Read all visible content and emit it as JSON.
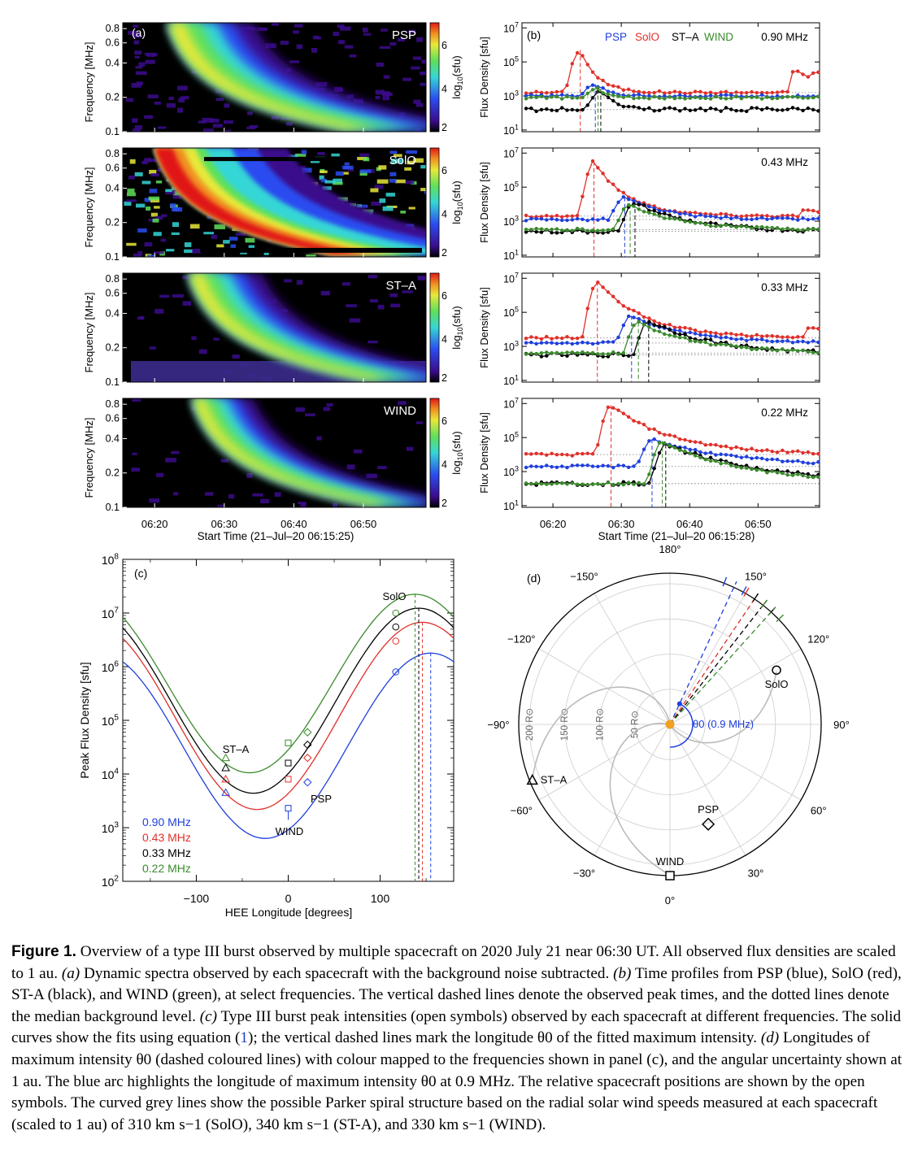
{
  "figure": {
    "panel_a": {
      "label": "(a)",
      "ylabel": "Frequency [MHz]",
      "yticks": [
        "0.8",
        "0.6",
        "0.4",
        "0.2",
        "0.1"
      ],
      "cbar_label": "log10(sfu)",
      "cbar_ticks": [
        "6",
        "4",
        "2"
      ],
      "xticks": [
        "06:20",
        "06:30",
        "06:40",
        "06:50"
      ],
      "xlabel": "Start Time (21–Jul–20 06:15:25)",
      "spacecraft": [
        "PSP",
        "SolO",
        "ST–A",
        "WIND"
      ]
    },
    "panel_b": {
      "label": "(b)",
      "ylabel": "Flux Density [sfu]",
      "yticks": [
        "10^7",
        "10^5",
        "10^3",
        "10^1"
      ],
      "legend": [
        {
          "name": "PSP",
          "color": "#1f3fdc"
        },
        {
          "name": "SolO",
          "color": "#e0302a"
        },
        {
          "name": "ST–A",
          "color": "#000000"
        },
        {
          "name": "WIND",
          "color": "#3a8a2c"
        }
      ],
      "frequencies": [
        "0.90 MHz",
        "0.43 MHz",
        "0.33 MHz",
        "0.22 MHz"
      ],
      "xticks": [
        "06:20",
        "06:30",
        "06:40",
        "06:50"
      ],
      "xlabel": "Start Time (21–Jul–20 06:15:28)"
    },
    "panel_c": {
      "label": "(c)",
      "ylabel": "Peak Flux Density [sfu]",
      "yticks": [
        "10^8",
        "10^7",
        "10^6",
        "10^5",
        "10^4",
        "10^3",
        "10^2"
      ],
      "xticks": [
        "−100",
        "0",
        "100"
      ],
      "xlabel": "HEE Longitude [degrees]",
      "sc_labels": {
        "solo": "SolO",
        "sta": "ST–A",
        "psp": "PSP",
        "wind": "WIND"
      },
      "legend": [
        {
          "label": "0.90 MHz",
          "color": "#1f3fdc"
        },
        {
          "label": "0.43 MHz",
          "color": "#e0302a"
        },
        {
          "label": "0.33 MHz",
          "color": "#000000"
        },
        {
          "label": "0.22 MHz",
          "color": "#3a8a2c"
        }
      ]
    },
    "panel_d": {
      "label": "(d)",
      "angle_labels": [
        "180°",
        "150°",
        "120°",
        "90°",
        "60°",
        "30°",
        "0°",
        "−30°",
        "−60°",
        "−90°",
        "−120°",
        "−150°"
      ],
      "radius_labels": [
        "200 R⊙",
        "150 R⊙",
        "100 R⊙",
        "50 R⊙"
      ],
      "theta_label": "θ0 (0.9 MHz)",
      "sc_labels": {
        "solo": "SolO",
        "sta": "ST–A",
        "psp": "PSP",
        "wind": "WIND"
      }
    }
  },
  "chart_data": [
    {
      "type": "line",
      "title": "(b) Time profiles, 0.90 MHz",
      "xlabel": "Start Time (21–Jul–20 06:15:28)",
      "ylabel": "Flux Density [sfu]",
      "yscale": "log",
      "ylim": [
        10,
        10000000
      ],
      "series": [
        {
          "name": "SolO",
          "peak_time": "06:24",
          "peak_sfu": 500000,
          "background_sfu": 2000
        },
        {
          "name": "PSP",
          "peak_time": "06:26",
          "peak_sfu": 5000,
          "background_sfu": 1000
        },
        {
          "name": "ST–A",
          "peak_time": "06:27",
          "peak_sfu": 2500,
          "background_sfu": 150
        },
        {
          "name": "WIND",
          "peak_time": "06:26.5",
          "peak_sfu": 2500,
          "background_sfu": 900
        }
      ]
    },
    {
      "type": "scatter",
      "title": "(c) Peak flux density vs HEE longitude",
      "xlabel": "HEE Longitude [degrees]",
      "ylabel": "Peak Flux Density [sfu]",
      "yscale": "log",
      "xlim": [
        -180,
        180
      ],
      "ylim": [
        100,
        100000000
      ],
      "spacecraft_longitudes": {
        "ST–A": -68,
        "WIND": 0,
        "PSP": 21,
        "SolO": 117
      },
      "series": [
        {
          "name": "0.90 MHz",
          "values": {
            "ST–A": 4500,
            "WIND": 2300,
            "PSP": 7000,
            "SolO": 800000
          },
          "theta0": 155
        },
        {
          "name": "0.43 MHz",
          "values": {
            "ST–A": 8000,
            "WIND": 8000,
            "PSP": 20000,
            "SolO": 3000000
          },
          "theta0": 146
        },
        {
          "name": "0.33 MHz",
          "values": {
            "ST–A": 13000,
            "WIND": 16000,
            "PSP": 35000,
            "SolO": 5500000
          },
          "theta0": 142
        },
        {
          "name": "0.22 MHz",
          "values": {
            "ST–A": 20000,
            "WIND": 38000,
            "PSP": 60000,
            "SolO": 10000000
          },
          "theta0": 138
        }
      ]
    },
    {
      "type": "scatter",
      "title": "(d) Spacecraft positions (polar, HEE)",
      "spacecraft": [
        {
          "name": "SolO",
          "longitude_deg": 117,
          "r_rsun": 170
        },
        {
          "name": "ST–A",
          "longitude_deg": -68,
          "r_rsun": 211
        },
        {
          "name": "PSP",
          "longitude_deg": 21,
          "r_rsun": 152
        },
        {
          "name": "WIND",
          "longitude_deg": 0,
          "r_rsun": 214
        }
      ],
      "theta0_deg": [
        155,
        146,
        142,
        138
      ]
    }
  ],
  "caption": {
    "label": "Figure 1.",
    "text_1": " Overview of a type III burst observed by multiple spacecraft on 2020 July 21 near 06:30 UT. All observed flux densities are scaled to 1 au. ",
    "a_label": "(a)",
    "text_a": " Dynamic spectra observed by each spacecraft with the background noise subtracted. ",
    "b_label": "(b)",
    "text_b": " Time profiles from PSP (blue), SolO (red), ST-A (black), and WIND (green), at select frequencies. The vertical dashed lines denote the observed peak times, and the dotted lines denote the median background level. ",
    "c_label": "(c)",
    "text_c1": " Type III burst peak intensities (open symbols) observed by each spacecraft at different frequencies. The solid curves show the fits using equation (",
    "eq_ref": "1",
    "text_c2": "); the vertical dashed lines mark the longitude θ0 of the fitted maximum intensity. ",
    "d_label": "(d)",
    "text_d": " Longitudes of maximum intensity θ0 (dashed coloured lines) with colour mapped to the frequencies shown in panel (c), and the angular uncertainty shown at 1 au. The blue arc highlights the longitude of maximum intensity θ0 at 0.9 MHz. The relative spacecraft positions are shown by the open symbols. The curved grey lines show the possible Parker spiral structure based on the radial solar wind speeds measured at each spacecraft (scaled to 1 au) of 310 km s−1 (SolO), 340 km s−1 (ST-A), and 330 km s−1 (WIND)."
  }
}
